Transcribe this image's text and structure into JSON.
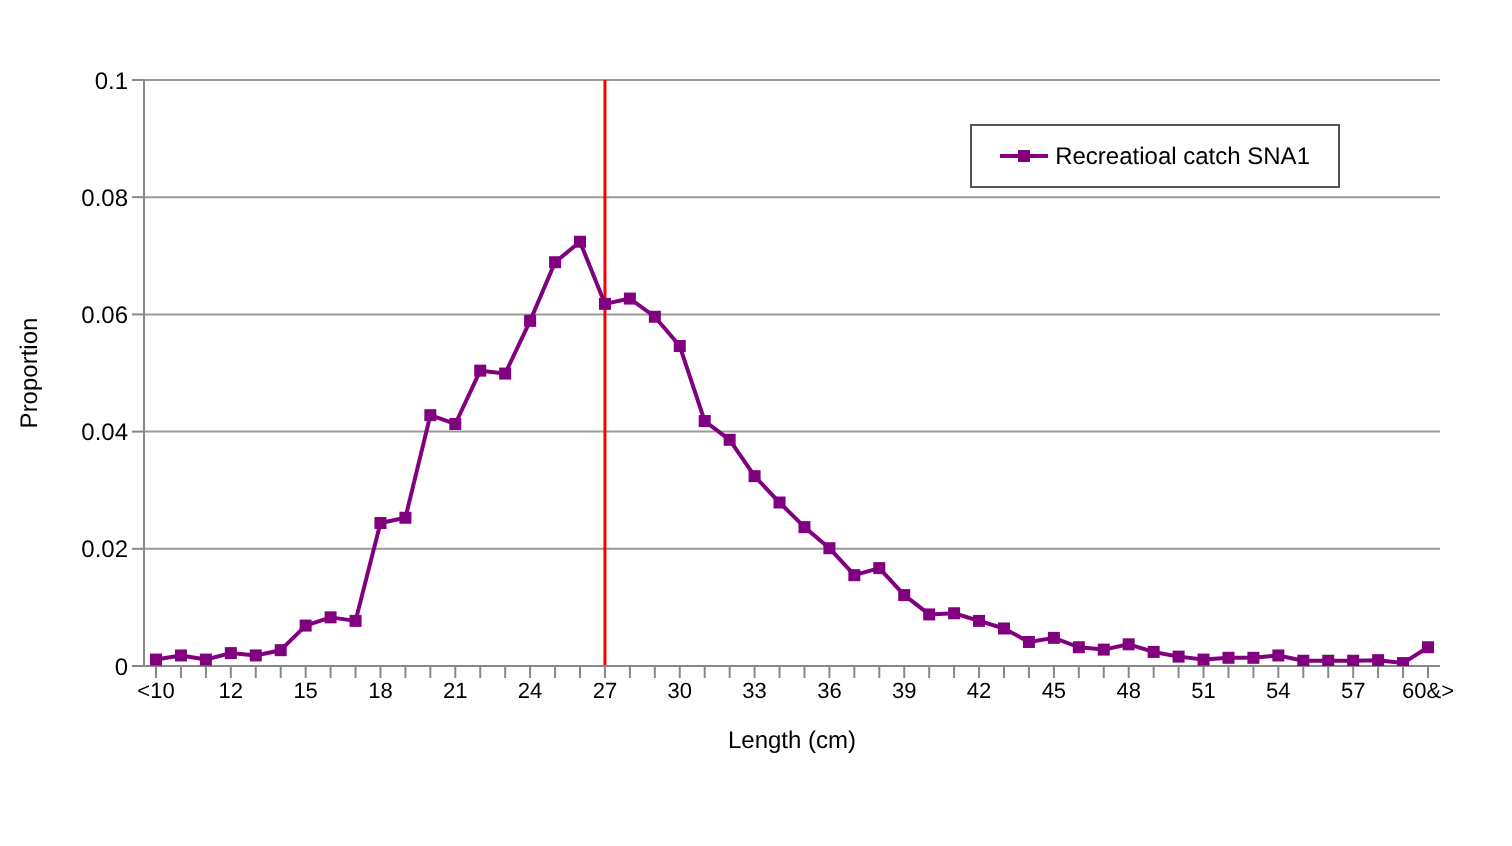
{
  "chart_data": {
    "type": "line",
    "xlabel": "Length (cm)",
    "ylabel": "Proportion",
    "categories": [
      "<10",
      null,
      null,
      "12",
      null,
      null,
      "15",
      null,
      null,
      "18",
      null,
      null,
      "21",
      null,
      null,
      "24",
      null,
      null,
      "27",
      null,
      null,
      "30",
      null,
      null,
      "33",
      null,
      null,
      "36",
      null,
      null,
      "39",
      null,
      null,
      "42",
      null,
      null,
      "45",
      null,
      null,
      "48",
      null,
      null,
      "51",
      null,
      null,
      "54",
      null,
      null,
      "57",
      null,
      null,
      "60&>"
    ],
    "series": [
      {
        "name": "Recreatioal catch SNA1",
        "color": "#800080",
        "values": [
          0.0011,
          0.0018,
          0.0011,
          0.0022,
          0.0018,
          0.0027,
          0.0069,
          0.0083,
          0.0077,
          0.0244,
          0.0253,
          0.0428,
          0.0413,
          0.0504,
          0.0499,
          0.0589,
          0.0689,
          0.0724,
          0.0618,
          0.0627,
          0.0596,
          0.0546,
          0.0418,
          0.0386,
          0.0324,
          0.0279,
          0.0237,
          0.0201,
          0.0155,
          0.0167,
          0.0121,
          0.0088,
          0.009,
          0.0077,
          0.0064,
          0.0041,
          0.0048,
          0.0032,
          0.0028,
          0.0037,
          0.0024,
          0.0016,
          0.0011,
          0.0014,
          0.0014,
          0.0018,
          0.0009,
          0.0009,
          0.0009,
          0.001,
          0.0005,
          0.0032
        ]
      }
    ],
    "ylim": [
      0,
      0.1
    ],
    "yticks": [
      0,
      0.02,
      0.04,
      0.06,
      0.08,
      0.1
    ],
    "grid": "y",
    "legend": "top right",
    "marker": "square",
    "line_style": "solid",
    "ref_lines": [
      {
        "axis": "x",
        "value": "27",
        "color": "#ff0000"
      }
    ]
  }
}
